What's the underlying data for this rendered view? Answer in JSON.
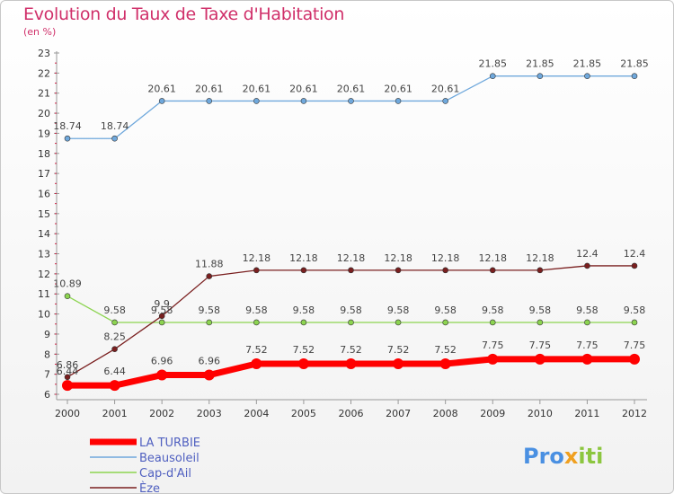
{
  "title": "Evolution du Taux de Taxe d'Habitation",
  "subtitle": "(en %)",
  "brand": {
    "part1": "Pro",
    "part2": "x",
    "part3": "iti",
    "color1": "#4a90e2",
    "color2": "#f0a020",
    "color3": "#8cc63f"
  },
  "chart_data": {
    "type": "line",
    "x": [
      "2000",
      "2001",
      "2002",
      "2003",
      "2004",
      "2005",
      "2006",
      "2007",
      "2008",
      "2009",
      "2010",
      "2011",
      "2012"
    ],
    "yticks": [
      6,
      7,
      8,
      9,
      10,
      11,
      12,
      13,
      14,
      15,
      16,
      17,
      18,
      19,
      20,
      21,
      22,
      23
    ],
    "ylim": [
      6,
      23
    ],
    "grid": false,
    "legend_position": "bottom-left",
    "series": [
      {
        "name": "LA TURBIE",
        "color": "#ff0000",
        "width": 7,
        "marker": 6,
        "values": [
          6.44,
          6.44,
          6.96,
          6.96,
          7.52,
          7.52,
          7.52,
          7.52,
          7.52,
          7.75,
          7.75,
          7.75,
          7.75
        ],
        "labels": [
          "6.44",
          "6.44",
          "6.96",
          "6.96",
          "7.52",
          "7.52",
          "7.52",
          "7.52",
          "7.52",
          "7.75",
          "7.75",
          "7.75",
          "7.75"
        ],
        "label_dy": [
          -12,
          -12,
          -12,
          -12,
          -12,
          -12,
          -12,
          -12,
          -12,
          -12,
          -12,
          -12,
          -12
        ]
      },
      {
        "name": "Beausoleil",
        "color": "#6fa8dc",
        "width": 1.3,
        "marker": 3,
        "values": [
          18.74,
          18.74,
          20.61,
          20.61,
          20.61,
          20.61,
          20.61,
          20.61,
          20.61,
          21.85,
          21.85,
          21.85,
          21.85
        ],
        "labels": [
          "18.74",
          "18.74",
          "20.61",
          "20.61",
          "20.61",
          "20.61",
          "20.61",
          "20.61",
          "20.61",
          "21.85",
          "21.85",
          "21.85",
          "21.85"
        ],
        "label_dy": [
          -10,
          -10,
          -10,
          -10,
          -10,
          -10,
          -10,
          -10,
          -10,
          -10,
          -10,
          -10,
          -10
        ]
      },
      {
        "name": "Cap-d'Ail",
        "color": "#8cd450",
        "width": 1.3,
        "marker": 3,
        "values": [
          10.89,
          9.58,
          9.58,
          9.58,
          9.58,
          9.58,
          9.58,
          9.58,
          9.58,
          9.58,
          9.58,
          9.58,
          9.58
        ],
        "labels": [
          "10.89",
          "9.58",
          "9.58",
          "9.58",
          "9.58",
          "9.58",
          "9.58",
          "9.58",
          "9.58",
          "9.58",
          "9.58",
          "9.58",
          "9.58"
        ],
        "label_dy": [
          -10,
          -10,
          -10,
          -10,
          -10,
          -10,
          -10,
          -10,
          -10,
          -10,
          -10,
          -10,
          -10
        ]
      },
      {
        "name": "Èze",
        "color": "#7a1f1f",
        "width": 1.3,
        "marker": 3,
        "values": [
          6.86,
          8.25,
          9.9,
          11.88,
          12.18,
          12.18,
          12.18,
          12.18,
          12.18,
          12.18,
          12.18,
          12.4,
          12.4
        ],
        "labels": [
          "6.86",
          "8.25",
          "9.9",
          "11.88",
          "12.18",
          "12.18",
          "12.18",
          "12.18",
          "12.18",
          "12.18",
          "12.18",
          "12.4",
          "12.4"
        ],
        "label_dy": [
          -10,
          -10,
          -10,
          -10,
          -10,
          -10,
          -10,
          -10,
          -10,
          -10,
          -10,
          -10,
          -10
        ]
      }
    ]
  }
}
